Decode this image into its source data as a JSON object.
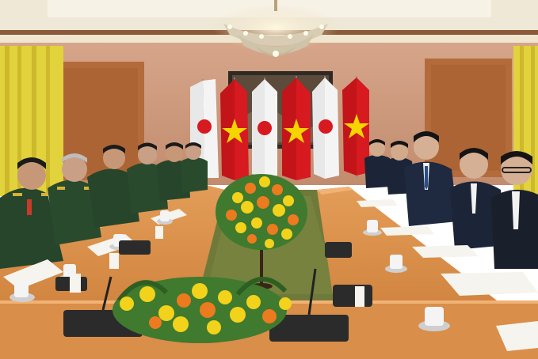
{
  "photo": {
    "subject": "bilateral-meeting",
    "flag_pairs": [
      "japan",
      "vietnam",
      "japan",
      "vietnam",
      "japan",
      "vietnam"
    ],
    "colors": {
      "wall": "#c9977a",
      "wood_panel": "#b26a3a",
      "ceiling": "#efe8d6",
      "curtain": "#e3d33c",
      "carpet": "#6f7a3a",
      "table": "#d98e4a",
      "uniform_green": "#27452a",
      "suit_navy": "#1c2437",
      "flag_red": "#d71920",
      "flag_star": "#f5d400",
      "flower_yellow": "#f2d21b",
      "flower_orange": "#ec7a1f"
    }
  }
}
